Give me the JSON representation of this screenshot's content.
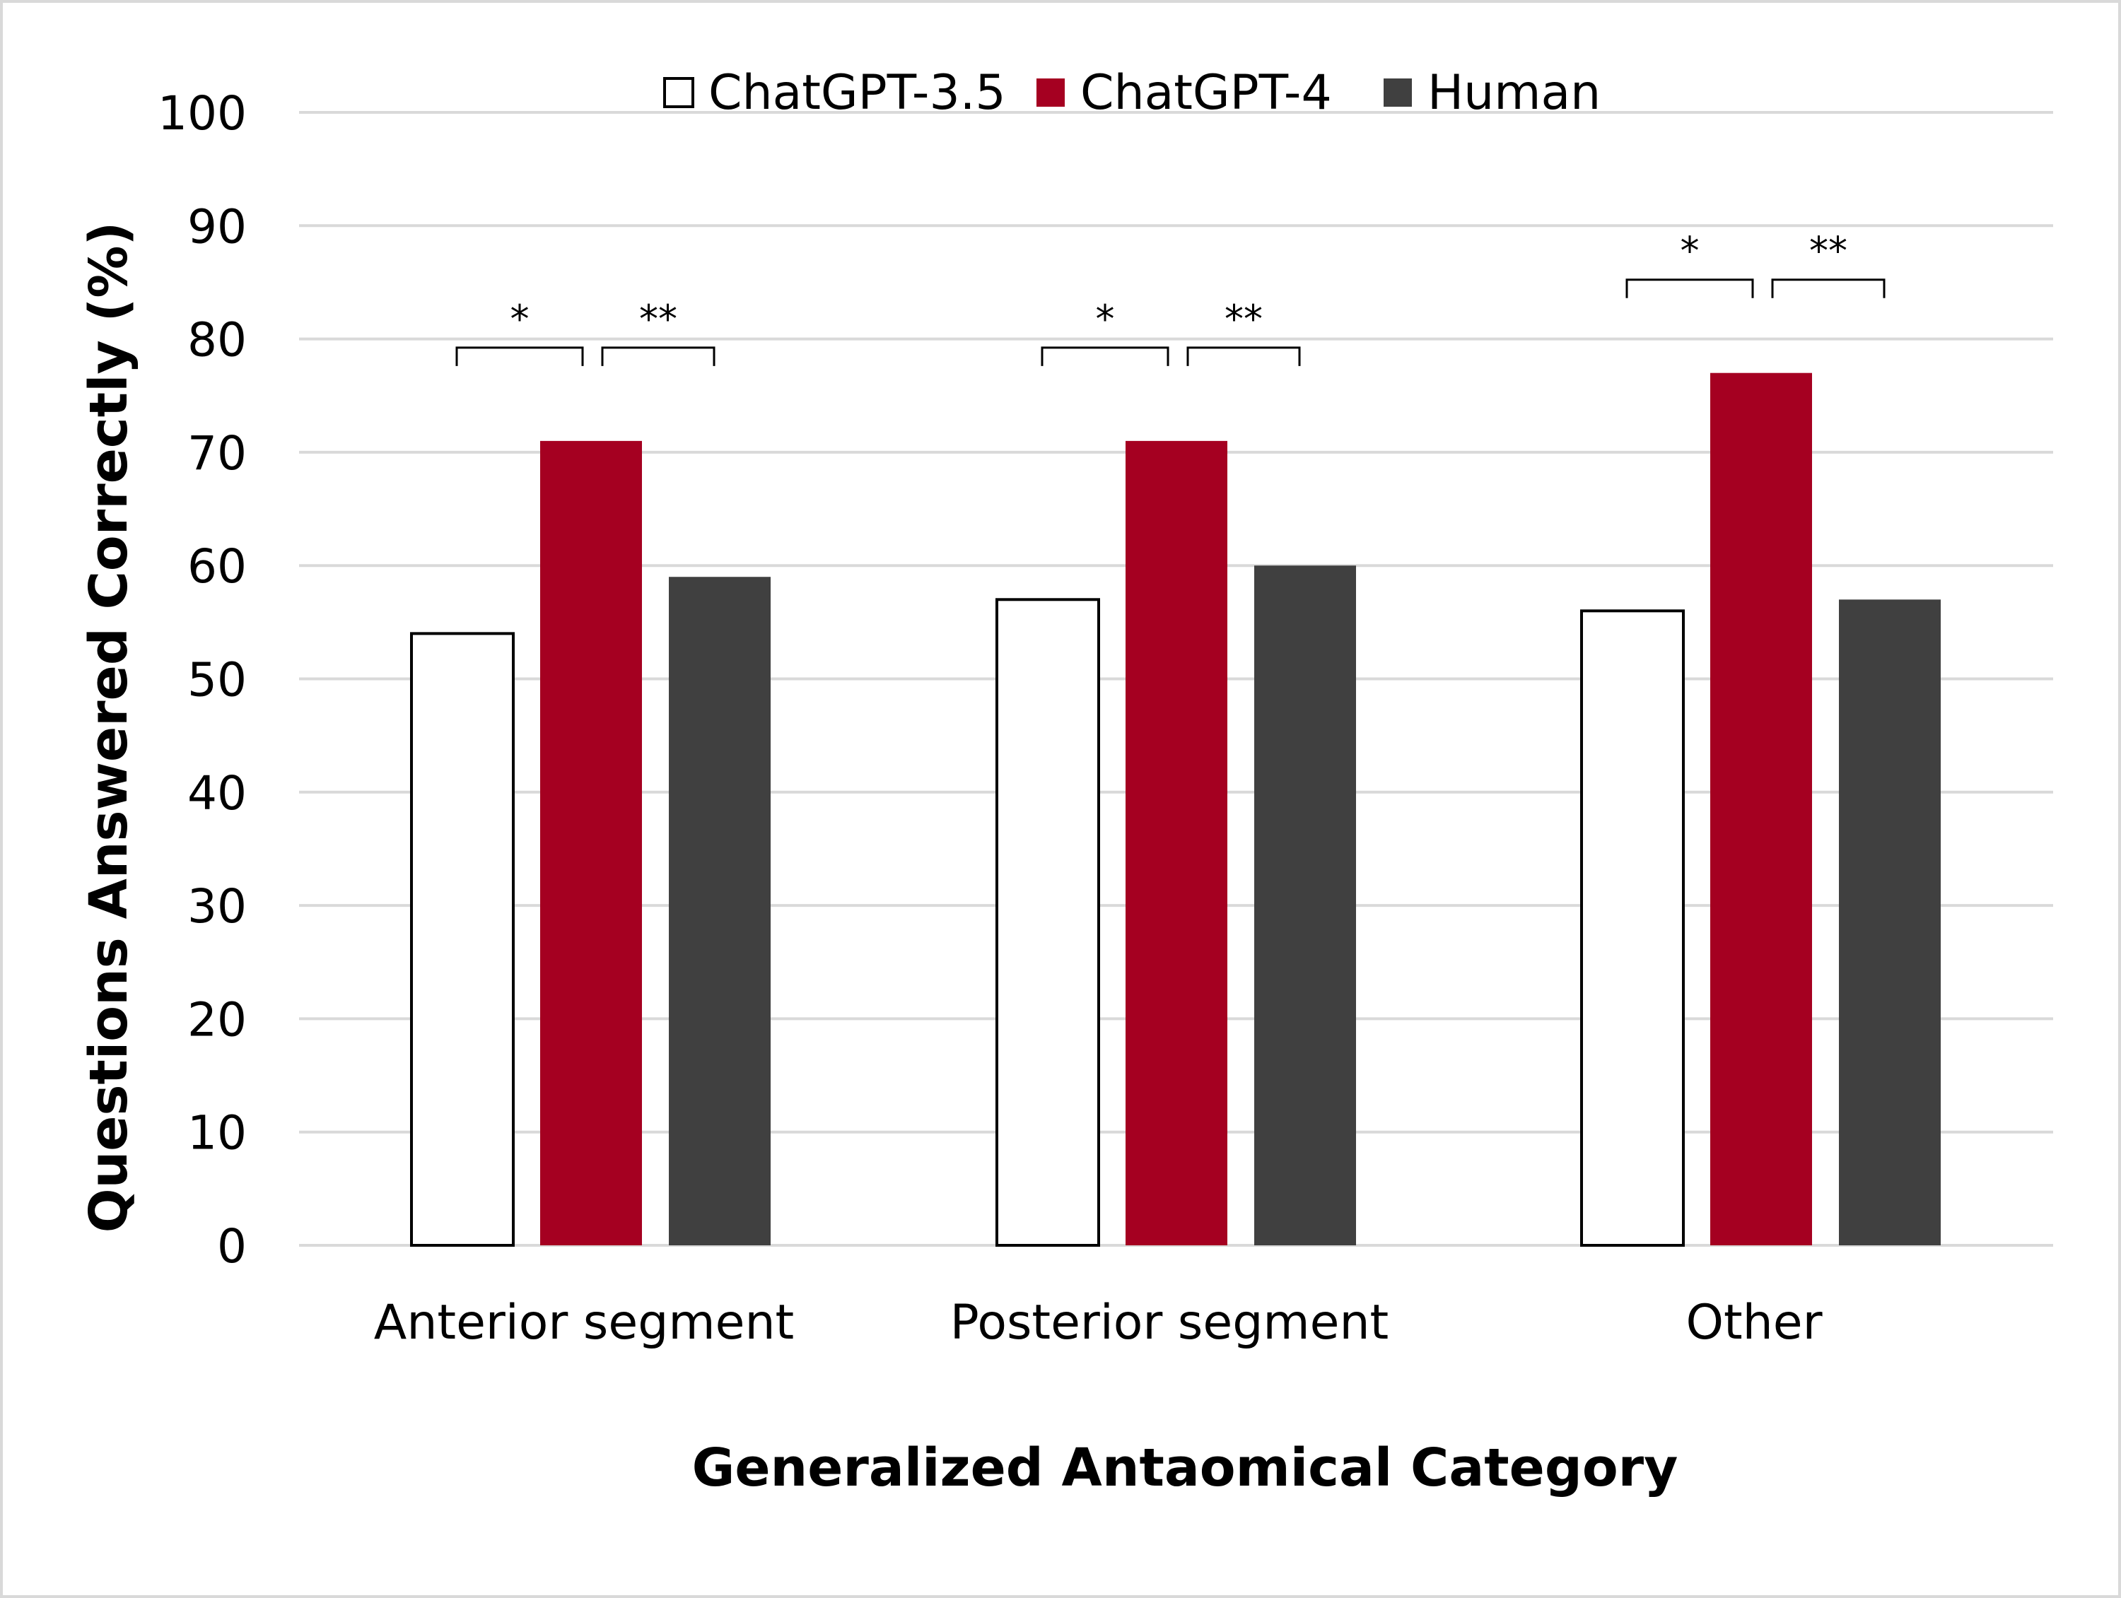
{
  "chart_data": {
    "type": "bar",
    "title": "",
    "xlabel": "Generalized Antaomical Category",
    "ylabel": "Questions Answered Correctly (%)",
    "ylim": [
      0,
      100
    ],
    "yticks": [
      0,
      10,
      20,
      30,
      40,
      50,
      60,
      70,
      80,
      90,
      100
    ],
    "grid": true,
    "legend_position": "top",
    "categories": [
      "Anterior segment",
      "Posterior segment",
      "Other"
    ],
    "series": [
      {
        "name": "ChatGPT-3.5",
        "values": [
          54,
          57,
          56
        ],
        "color": "#ffffff",
        "stroke": "#000000"
      },
      {
        "name": "ChatGPT-4",
        "values": [
          71,
          71,
          77
        ],
        "color": "#a50021",
        "stroke": "none"
      },
      {
        "name": "Human",
        "values": [
          59,
          60,
          57
        ],
        "color": "#404040",
        "stroke": "none"
      }
    ],
    "annotations": [
      {
        "category": "Anterior segment",
        "between": [
          "ChatGPT-3.5",
          "ChatGPT-4"
        ],
        "label": "*"
      },
      {
        "category": "Anterior segment",
        "between": [
          "ChatGPT-4",
          "Human"
        ],
        "label": "**"
      },
      {
        "category": "Posterior segment",
        "between": [
          "ChatGPT-3.5",
          "ChatGPT-4"
        ],
        "label": "*"
      },
      {
        "category": "Posterior segment",
        "between": [
          "ChatGPT-4",
          "Human"
        ],
        "label": "**"
      },
      {
        "category": "Other",
        "between": [
          "ChatGPT-3.5",
          "ChatGPT-4"
        ],
        "label": "*"
      },
      {
        "category": "Other",
        "between": [
          "ChatGPT-4",
          "Human"
        ],
        "label": "**"
      }
    ]
  }
}
